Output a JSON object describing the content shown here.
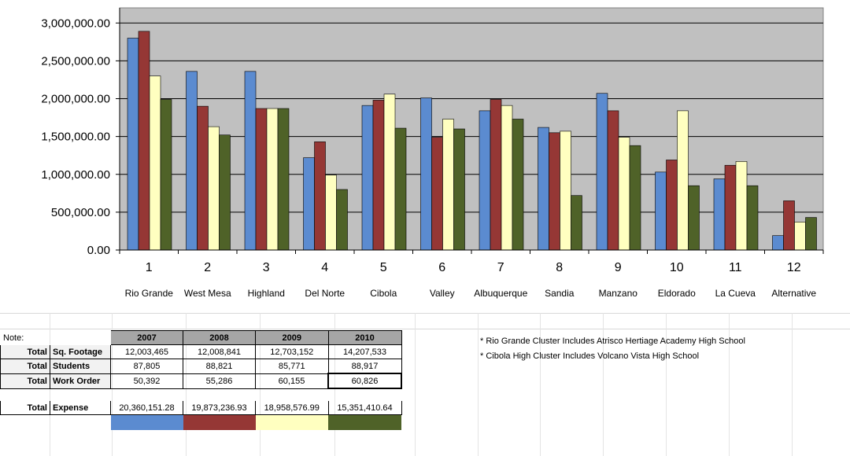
{
  "chart_data": {
    "type": "bar",
    "categories": [
      "1",
      "2",
      "3",
      "4",
      "5",
      "6",
      "7",
      "8",
      "9",
      "10",
      "11",
      "12"
    ],
    "category_names": [
      "Rio Grande",
      "West Mesa",
      "Highland",
      "Del Norte",
      "Cibola",
      "Valley",
      "Albuquerque",
      "Sandia",
      "Manzano",
      "Eldorado",
      "La Cueva",
      "Alternative"
    ],
    "series": [
      {
        "values": [
          2800000,
          2360000,
          2360000,
          1220000,
          1910000,
          2010000,
          1840000,
          1620000,
          2070000,
          1030000,
          940000,
          190000
        ]
      },
      {
        "values": [
          2890000,
          1900000,
          1870000,
          1430000,
          1980000,
          1490000,
          1990000,
          1550000,
          1840000,
          1190000,
          1120000,
          650000
        ]
      },
      {
        "values": [
          2300000,
          1630000,
          1870000,
          990000,
          2060000,
          1730000,
          1910000,
          1570000,
          1490000,
          1840000,
          1170000,
          370000
        ]
      },
      {
        "values": [
          1990000,
          1520000,
          1870000,
          800000,
          1610000,
          1600000,
          1730000,
          720000,
          1380000,
          850000,
          850000,
          430000
        ]
      }
    ],
    "colors": [
      "#5b8bd0",
      "#953735",
      "#ffffc0",
      "#4f6228"
    ],
    "y_ticks": [
      "0.00",
      "500,000.00",
      "1,000,000.00",
      "1,500,000.00",
      "2,000,000.00",
      "2,500,000.00",
      "3,000,000.00"
    ],
    "ylim": [
      0,
      3200000
    ],
    "grid": true,
    "title": "",
    "xlabel": "",
    "ylabel": ""
  },
  "table": {
    "note_label": "Note:",
    "years": [
      "2007",
      "2008",
      "2009",
      "2010"
    ],
    "rows": [
      {
        "label1": "Total",
        "label2": "Sq. Footage",
        "values": [
          "12,003,465",
          "12,008,841",
          "12,703,152",
          "14,207,533"
        ]
      },
      {
        "label1": "Total",
        "label2": "Students",
        "values": [
          "87,805",
          "88,821",
          "85,771",
          "88,917"
        ]
      },
      {
        "label1": "Total",
        "label2": "Work Order",
        "values": [
          "50,392",
          "55,286",
          "60,155",
          "60,826"
        ]
      }
    ],
    "expense": {
      "label1": "Total",
      "label2": "Expense",
      "values": [
        "20,360,151.28",
        "19,873,236.93",
        "18,958,576.99",
        "15,351,410.64"
      ]
    }
  },
  "notes": [
    "* Rio Grande Cluster Includes Atrisco Hertiage Academy High School",
    "* Cibola High Cluster Includes Volcano Vista High School"
  ]
}
